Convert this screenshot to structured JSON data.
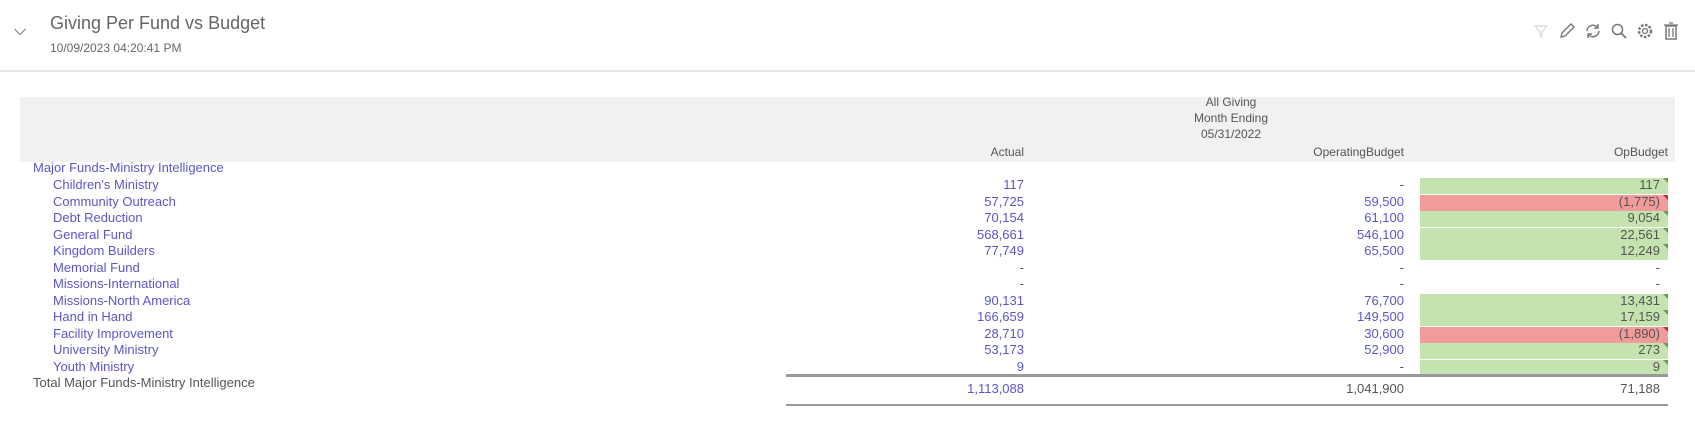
{
  "header": {
    "title": "Giving Per Fund vs Budget",
    "timestamp": "10/09/2023 04:20:41 PM",
    "icons": [
      "filter-icon",
      "pencil-icon",
      "refresh-icon",
      "search-icon",
      "gear-icon",
      "trash-icon"
    ]
  },
  "report": {
    "group_header": [
      "All Giving",
      "Month Ending",
      "05/31/2022"
    ],
    "columns": [
      "Actual",
      "OperatingBudget",
      "OpBudget"
    ],
    "group_label": "Major Funds-Ministry Intelligence",
    "rows": [
      {
        "name": "Children's Ministry",
        "actual": "117",
        "budget": "-",
        "variance": "117",
        "status": "positive"
      },
      {
        "name": "Community Outreach",
        "actual": "57,725",
        "budget": "59,500",
        "variance": "(1,775)",
        "status": "negative"
      },
      {
        "name": "Debt Reduction",
        "actual": "70,154",
        "budget": "61,100",
        "variance": "9,054",
        "status": "positive"
      },
      {
        "name": "General Fund",
        "actual": "568,661",
        "budget": "546,100",
        "variance": "22,561",
        "status": "positive"
      },
      {
        "name": "Kingdom Builders",
        "actual": "77,749",
        "budget": "65,500",
        "variance": "12,249",
        "status": "positive"
      },
      {
        "name": "Memorial Fund",
        "actual": "-",
        "budget": "-",
        "variance": "-",
        "status": "none"
      },
      {
        "name": "Missions-International",
        "actual": "-",
        "budget": "-",
        "variance": "-",
        "status": "none"
      },
      {
        "name": "Missions-North America",
        "actual": "90,131",
        "budget": "76,700",
        "variance": "13,431",
        "status": "positive"
      },
      {
        "name": "Hand in Hand",
        "actual": "166,659",
        "budget": "149,500",
        "variance": "17,159",
        "status": "positive"
      },
      {
        "name": "Facility Improvement",
        "actual": "28,710",
        "budget": "30,600",
        "variance": "(1,890)",
        "status": "negative"
      },
      {
        "name": "University Ministry",
        "actual": "53,173",
        "budget": "52,900",
        "variance": "273",
        "status": "positive"
      },
      {
        "name": "Youth Ministry",
        "actual": "9",
        "budget": "-",
        "variance": "9",
        "status": "positive"
      }
    ],
    "total": {
      "name": "Total Major Funds-Ministry Intelligence",
      "actual": "1,113,088",
      "budget": "1,041,900",
      "variance": "71,188"
    },
    "colors": {
      "positive": "#c5e3ae",
      "negative": "#f29b9b",
      "link": "#5b56c9"
    }
  }
}
